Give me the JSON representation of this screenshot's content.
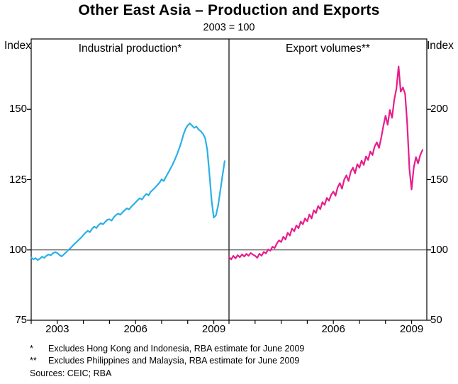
{
  "chart_data": {
    "type": "line",
    "title": "Other East Asia – Production and Exports",
    "subtitle": "2003 = 100",
    "baseline_value": 100,
    "xlim": [
      2002.0,
      2009.583
    ],
    "x_step_years": 0.083333,
    "panels": [
      {
        "label": "Industrial production*",
        "axis_side": "left",
        "axis_label": "Index",
        "series_color": "#2ab0e6",
        "ylim": [
          75,
          175
        ],
        "yticks": [
          75,
          100,
          125,
          150
        ],
        "xticks": [
          2003,
          2006,
          2009
        ],
        "x_start": 2002.0,
        "values": [
          97.3,
          96.6,
          97.1,
          96.4,
          96.9,
          97.6,
          97.2,
          97.9,
          98.4,
          98.1,
          98.8,
          99.2,
          98.9,
          98.2,
          97.7,
          98.4,
          99.1,
          99.9,
          100.6,
          101.4,
          102.2,
          102.9,
          103.7,
          104.4,
          105.3,
          106.1,
          106.8,
          106.3,
          107.5,
          108.3,
          107.8,
          108.8,
          109.5,
          109.1,
          109.9,
          110.7,
          110.9,
          110.4,
          111.6,
          112.4,
          112.9,
          112.5,
          113.4,
          114.1,
          114.8,
          114.4,
          115.3,
          116.1,
          116.9,
          117.7,
          118.4,
          117.9,
          119.1,
          119.9,
          119.4,
          120.7,
          121.4,
          122.2,
          123.0,
          123.9,
          125.1,
          124.5,
          126.0,
          127.4,
          128.8,
          130.3,
          132.0,
          133.8,
          135.9,
          138.2,
          140.9,
          143.0,
          144.3,
          145.0,
          144.2,
          143.4,
          143.9,
          142.8,
          142.2,
          141.3,
          139.8,
          135.5,
          127.0,
          117.5,
          111.5,
          112.3,
          115.8,
          121.0,
          126.4,
          131.6
        ]
      },
      {
        "label": "Export volumes**",
        "axis_side": "right",
        "axis_label": "Index",
        "series_color": "#e61e8c",
        "ylim": [
          50,
          250
        ],
        "yticks": [
          50,
          100,
          150,
          200
        ],
        "xticks": [
          2006,
          2009
        ],
        "x_start": 2002.0,
        "values": [
          95.0,
          93.2,
          95.8,
          94.0,
          96.3,
          94.8,
          96.8,
          95.3,
          97.2,
          95.8,
          97.8,
          96.7,
          95.8,
          94.4,
          97.3,
          95.9,
          98.6,
          97.5,
          100.4,
          99.4,
          102.3,
          101.3,
          104.6,
          106.8,
          105.6,
          109.4,
          107.4,
          112.2,
          110.2,
          115.2,
          113.2,
          117.4,
          115.4,
          120.2,
          118.2,
          122.4,
          120.4,
          125.2,
          122.4,
          128.2,
          126.2,
          131.2,
          129.0,
          134.0,
          132.0,
          137.0,
          135.0,
          139.2,
          141.5,
          138.5,
          144.5,
          147.5,
          143.5,
          150.0,
          153.0,
          149.0,
          155.5,
          158.5,
          154.5,
          161.0,
          158.5,
          163.5,
          160.5,
          166.5,
          164.0,
          170.0,
          167.5,
          173.5,
          176.5,
          172.5,
          179.5,
          188.0,
          195.5,
          189.0,
          199.5,
          194.0,
          206.5,
          214.5,
          230.5,
          212.5,
          215.5,
          211.0,
          189.5,
          157.5,
          143.0,
          158.5,
          166.0,
          161.5,
          167.5,
          171.0
        ]
      }
    ]
  },
  "footnotes": [
    {
      "marker": "*",
      "text": "Excludes Hong Kong and Indonesia, RBA estimate for June 2009"
    },
    {
      "marker": "**",
      "text": "Excludes Philippines and Malaysia, RBA estimate for June 2009"
    }
  ],
  "sources": "Sources: CEIC; RBA"
}
